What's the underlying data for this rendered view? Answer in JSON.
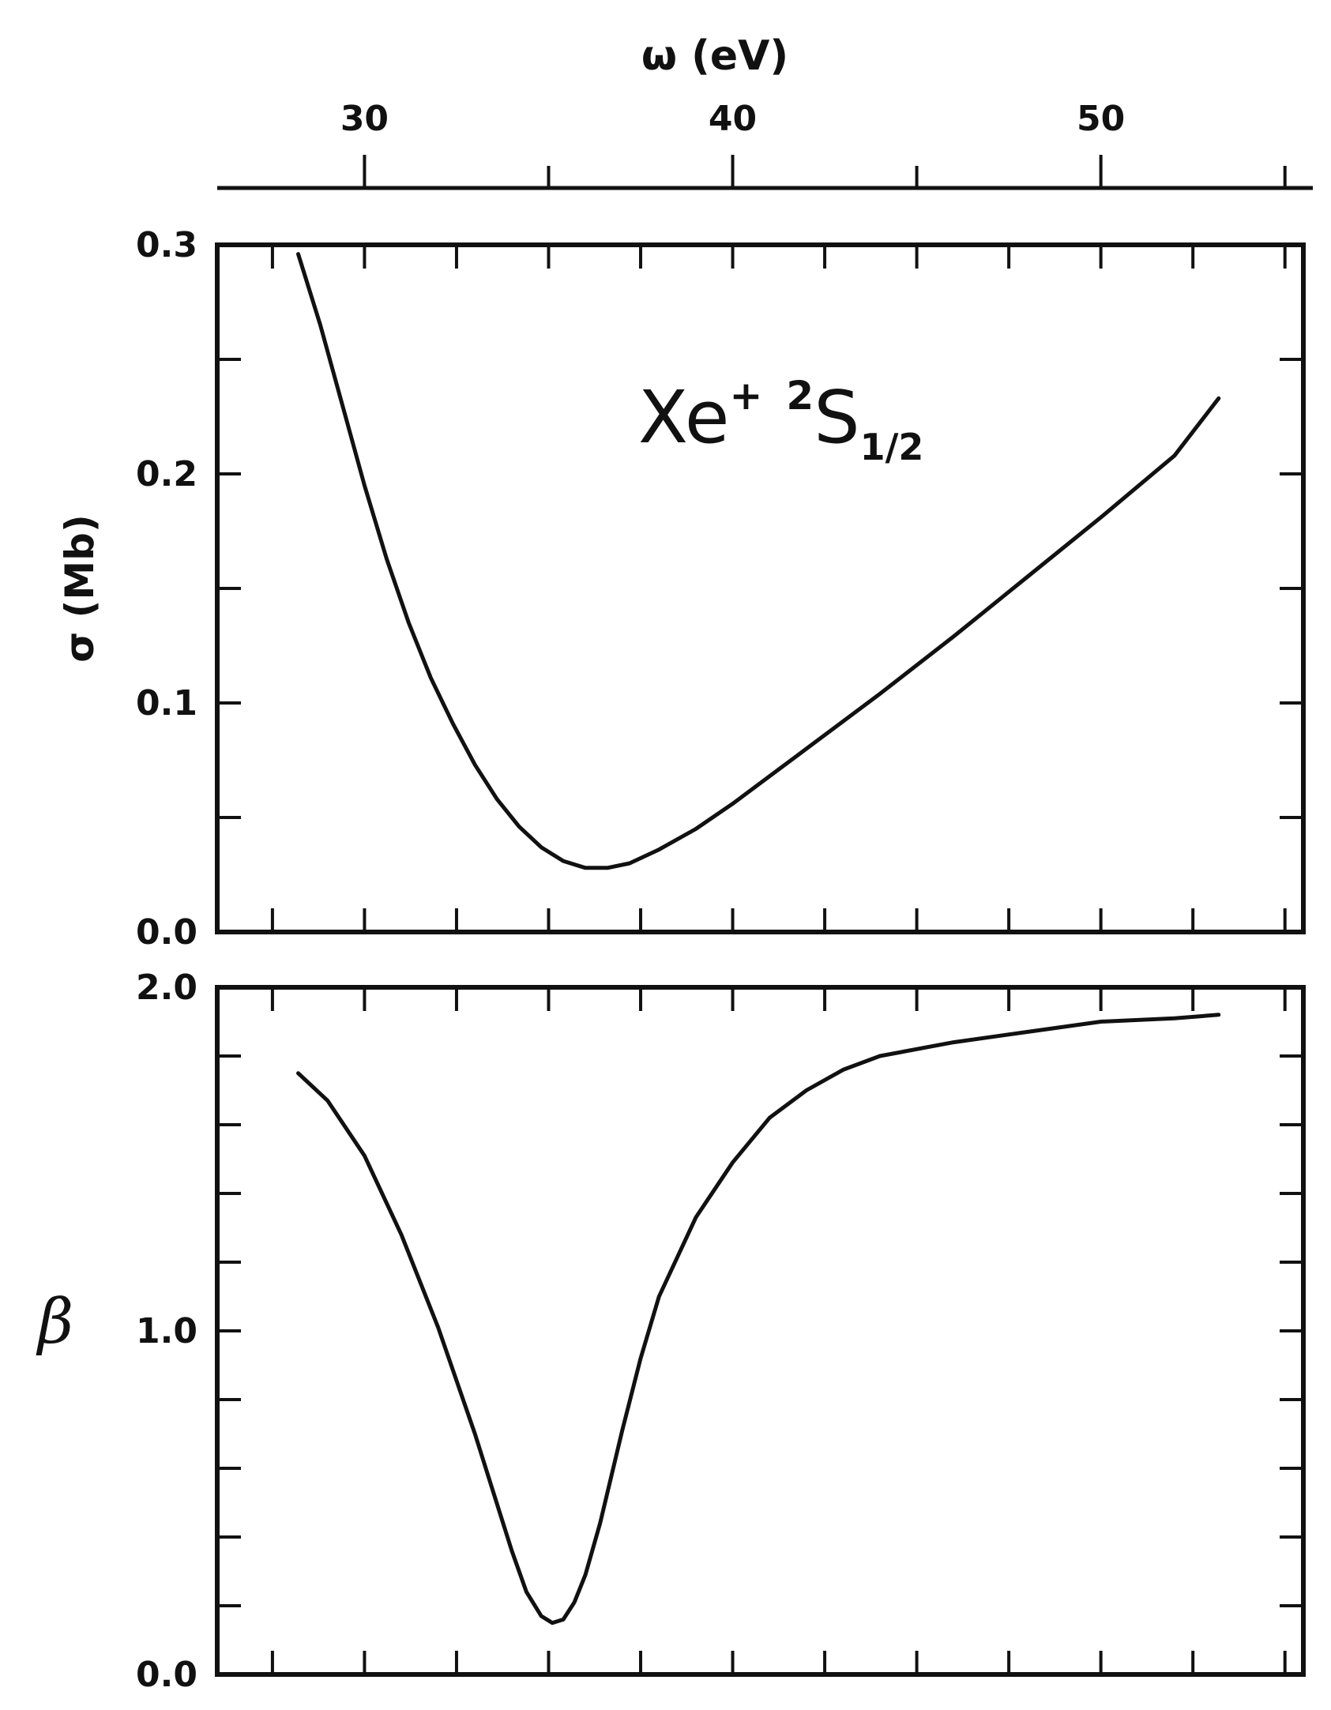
{
  "chart_data": [
    {
      "type": "line",
      "panel": "top",
      "x_axis": {
        "label": "ω (eV)",
        "position": "top",
        "range": [
          26.0,
          55.5
        ],
        "major_ticks": [
          30,
          40,
          50
        ],
        "minor_ticks": [
          35,
          45,
          55
        ],
        "tick_labels": [
          "30",
          "40",
          "50"
        ]
      },
      "ylabel": "σ (Mb)",
      "ylim": [
        0.0,
        0.3
      ],
      "ytick_labels": [
        "0.3",
        "0.2",
        "0.1",
        "0.0"
      ],
      "yticks": [
        0.0,
        0.05,
        0.1,
        0.15,
        0.2,
        0.25,
        0.3
      ],
      "annotation": {
        "base": "Xe",
        "charge": "+",
        "term_sup": "2",
        "term": "S",
        "term_sub": "1/2"
      },
      "series": [
        {
          "x": [
            28.2,
            28.8,
            29.4,
            30.0,
            30.6,
            31.2,
            31.8,
            32.4,
            33.0,
            33.6,
            34.2,
            34.8,
            35.4,
            36.0,
            36.6,
            37.2,
            38.0,
            39.0,
            40.0,
            41.0,
            42.0,
            44.0,
            46.0,
            48.0,
            50.0,
            52.0,
            53.2
          ],
          "y": [
            0.296,
            0.265,
            0.23,
            0.195,
            0.163,
            0.135,
            0.111,
            0.091,
            0.073,
            0.058,
            0.046,
            0.037,
            0.031,
            0.028,
            0.028,
            0.03,
            0.036,
            0.045,
            0.056,
            0.068,
            0.08,
            0.104,
            0.129,
            0.155,
            0.181,
            0.208,
            0.233
          ]
        }
      ]
    },
    {
      "type": "line",
      "panel": "bottom",
      "ylabel": "β",
      "ylim": [
        0.0,
        2.0
      ],
      "ytick_labels": [
        "2.0",
        "1.0",
        "0.0"
      ],
      "yticks": [
        0.0,
        0.2,
        0.4,
        0.6,
        0.8,
        1.0,
        1.2,
        1.4,
        1.6,
        1.8,
        2.0
      ],
      "series": [
        {
          "x": [
            28.2,
            29.0,
            30.0,
            31.0,
            32.0,
            33.0,
            33.5,
            34.0,
            34.4,
            34.8,
            35.1,
            35.4,
            35.7,
            36.0,
            36.4,
            37.0,
            37.5,
            38.0,
            39.0,
            40.0,
            41.0,
            42.0,
            43.0,
            44.0,
            46.0,
            48.0,
            50.0,
            52.0,
            53.2
          ],
          "y": [
            1.75,
            1.67,
            1.51,
            1.28,
            1.01,
            0.7,
            0.53,
            0.36,
            0.24,
            0.17,
            0.15,
            0.16,
            0.21,
            0.29,
            0.44,
            0.71,
            0.92,
            1.1,
            1.33,
            1.49,
            1.62,
            1.7,
            1.76,
            1.8,
            1.84,
            1.87,
            1.9,
            1.91,
            1.92
          ]
        }
      ]
    }
  ]
}
